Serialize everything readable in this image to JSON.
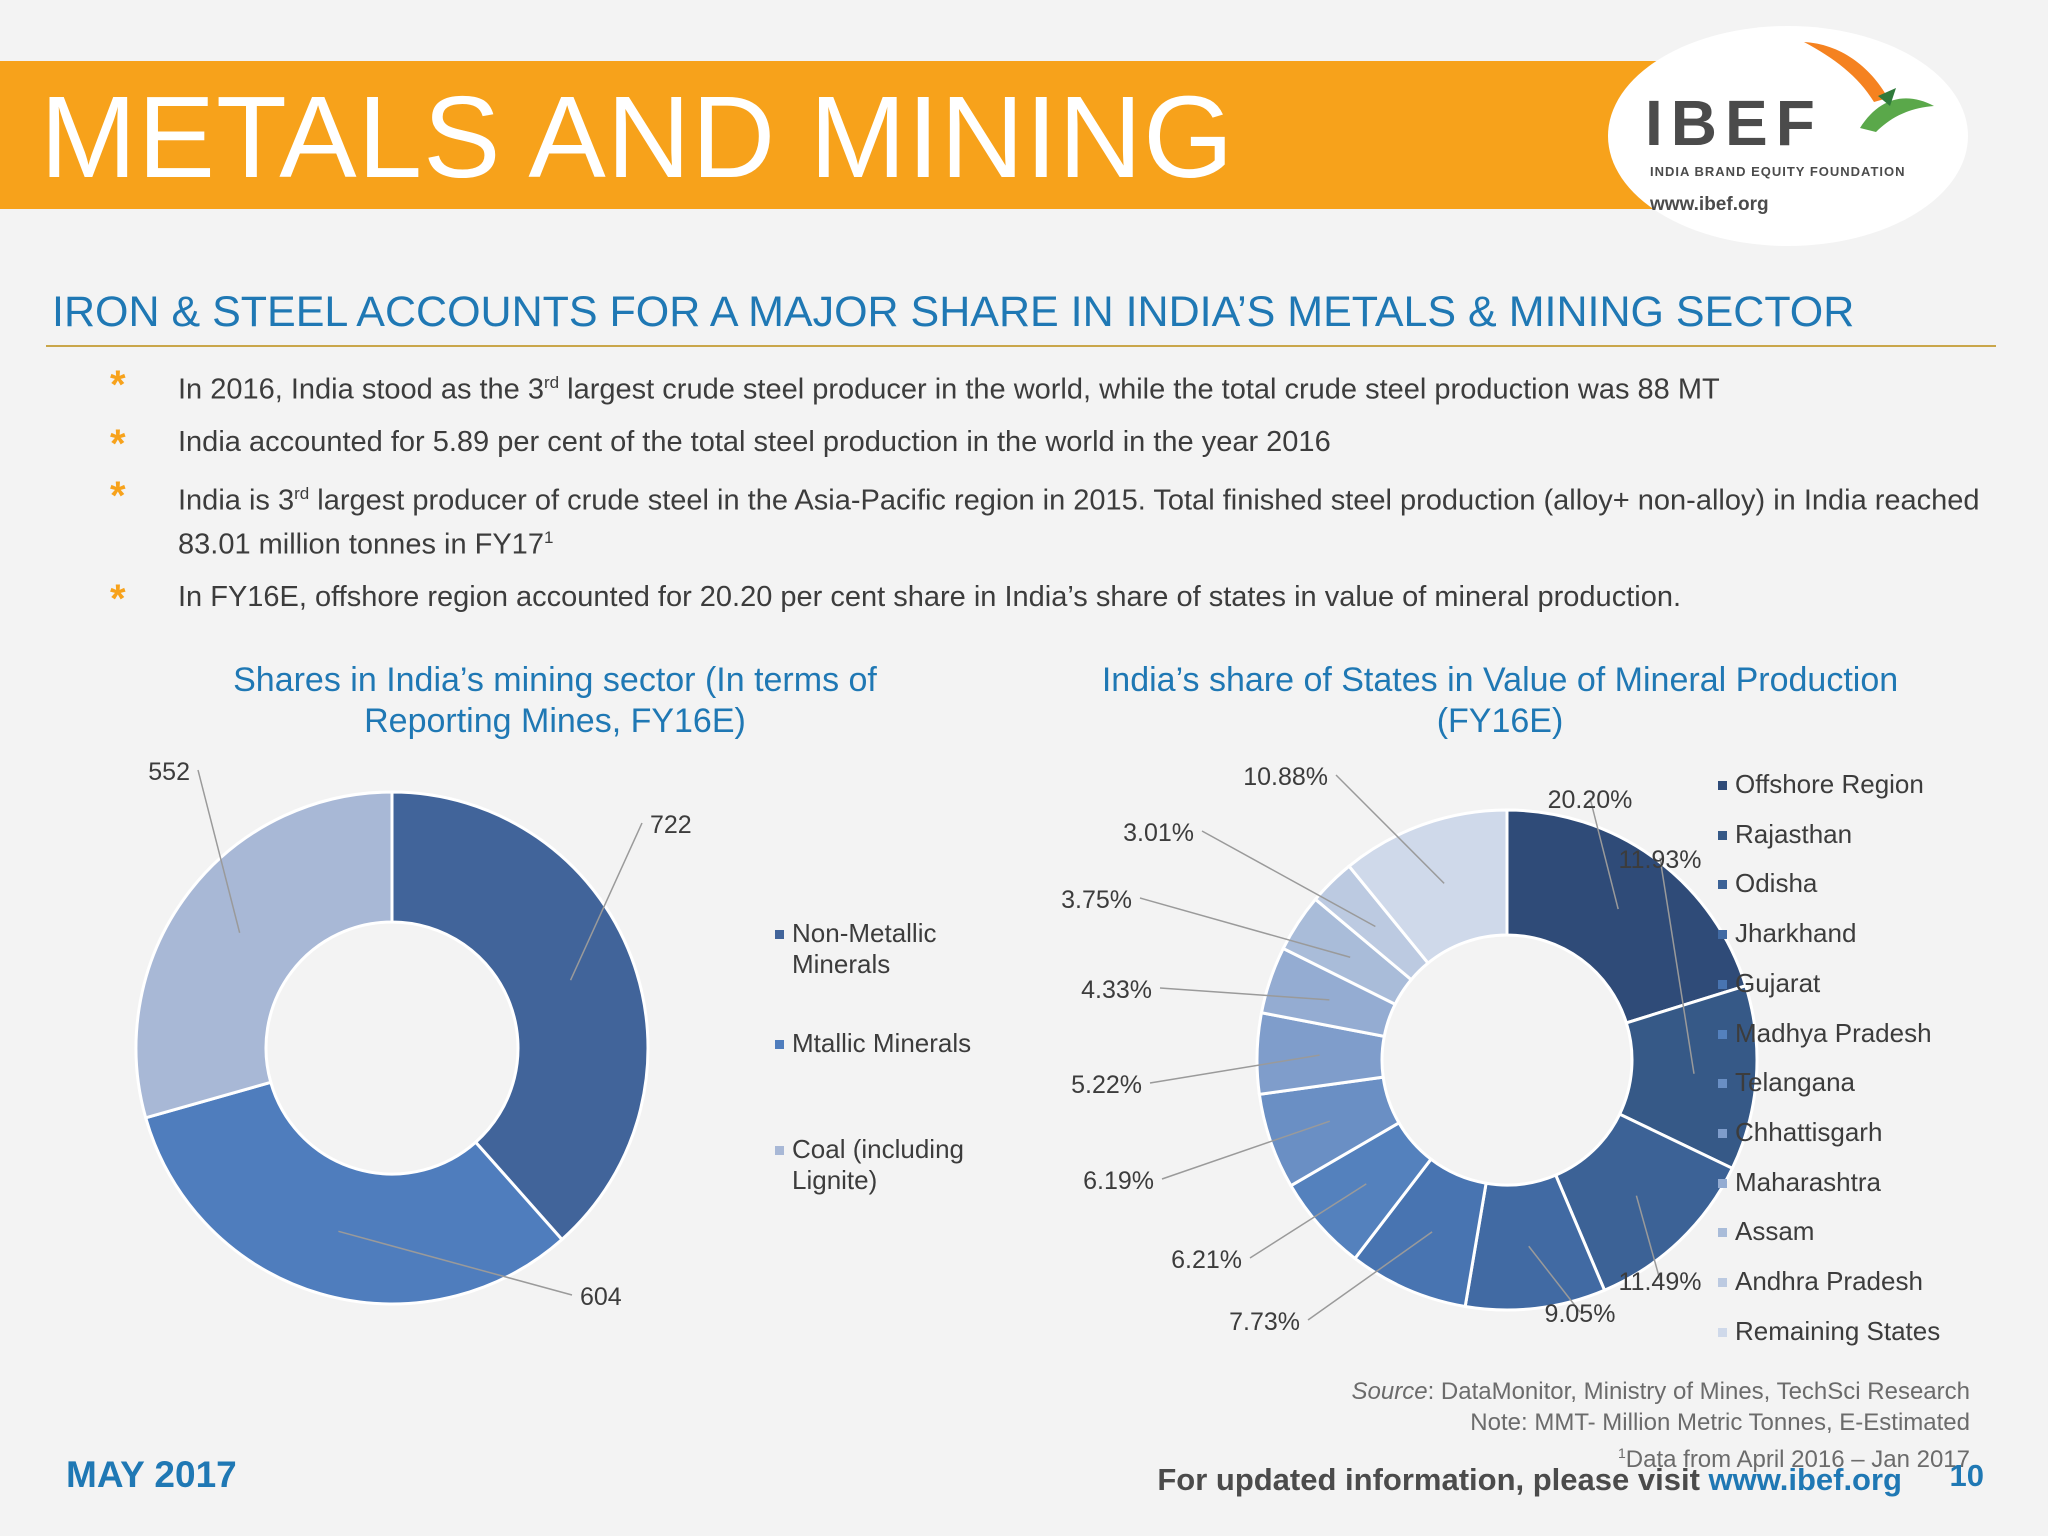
{
  "header": {
    "title": "METALS AND MINING",
    "logo_name": "IBEF",
    "logo_tagline": "INDIA BRAND EQUITY FOUNDATION",
    "logo_url": "www.ibef.org",
    "brand_color": "#f7a21b"
  },
  "subtitle": "IRON & STEEL ACCOUNTS FOR A MAJOR SHARE IN INDIA’S METALS & MINING SECTOR",
  "bullets": [
    {
      "pre": "In 2016, India stood as the 3",
      "sup": "rd",
      "post": " largest crude steel producer in the world, while the total crude steel production was 88 MT"
    },
    {
      "pre": "India accounted for 5.89 per cent of the total steel production in the world in the year 2016"
    },
    {
      "pre": "India is 3",
      "sup": "rd",
      "post": " largest producer of crude steel in the Asia-Pacific region in 2015. Total finished steel production (alloy+ non-alloy) in India reached 83.01 million tonnes in FY17",
      "sup2": "1"
    },
    {
      "pre": "In FY16E, offshore region accounted for 20.20 per cent share in India’s share of states in value of mineral production."
    }
  ],
  "chart_data": [
    {
      "type": "pie",
      "title": "Shares in India’s mining sector (In terms of Reporting Mines, FY16E)",
      "categories": [
        "Non-Metallic Minerals",
        "Mtallic Minerals",
        "Coal (including Lignite)"
      ],
      "values": [
        722,
        604,
        552
      ],
      "labels": [
        "722",
        "604",
        "552"
      ],
      "colors": [
        "#41649a",
        "#4f7dbd",
        "#a8b8d6"
      ],
      "legend": "right"
    },
    {
      "type": "pie",
      "title": "India’s share of States in Value of Mineral Production (FY16E)",
      "categories": [
        "Offshore Region",
        "Rajasthan",
        "Odisha",
        "Jharkhand",
        "Gujarat",
        "Madhya Pradesh",
        "Telangana",
        "Chhattisgarh",
        "Maharashtra",
        "Assam",
        "Andhra Pradesh",
        "Remaining States"
      ],
      "values": [
        20.2,
        11.93,
        11.49,
        9.05,
        7.73,
        6.21,
        6.19,
        5.22,
        4.33,
        3.75,
        3.01,
        10.88
      ],
      "labels": [
        "20.20%",
        "11.93%",
        "11.49%",
        "9.05%",
        "7.73%",
        "6.21%",
        "6.19%",
        "5.22%",
        "4.33%",
        "3.75%",
        "3.01%",
        "10.88%"
      ],
      "colors": [
        "#2f4b78",
        "#365987",
        "#3c6296",
        "#416aa3",
        "#4874b1",
        "#5481bd",
        "#6a8fc4",
        "#7f9dcb",
        "#94acd2",
        "#a9bcd9",
        "#bccae1",
        "#cfd9ea"
      ],
      "legend": "right"
    }
  ],
  "footer": {
    "date": "MAY 2017",
    "source_label": "Source",
    "source_text": ": DataMonitor, Ministry of Mines, TechSci Research",
    "note": "Note: MMT- Million Metric Tonnes, E-Estimated",
    "footnote_mark": "1",
    "footnote": "Data from April 2016 – Jan 2017",
    "visit_text": "For updated information, please visit ",
    "visit_url": "www.ibef.org",
    "page_number": "10"
  }
}
